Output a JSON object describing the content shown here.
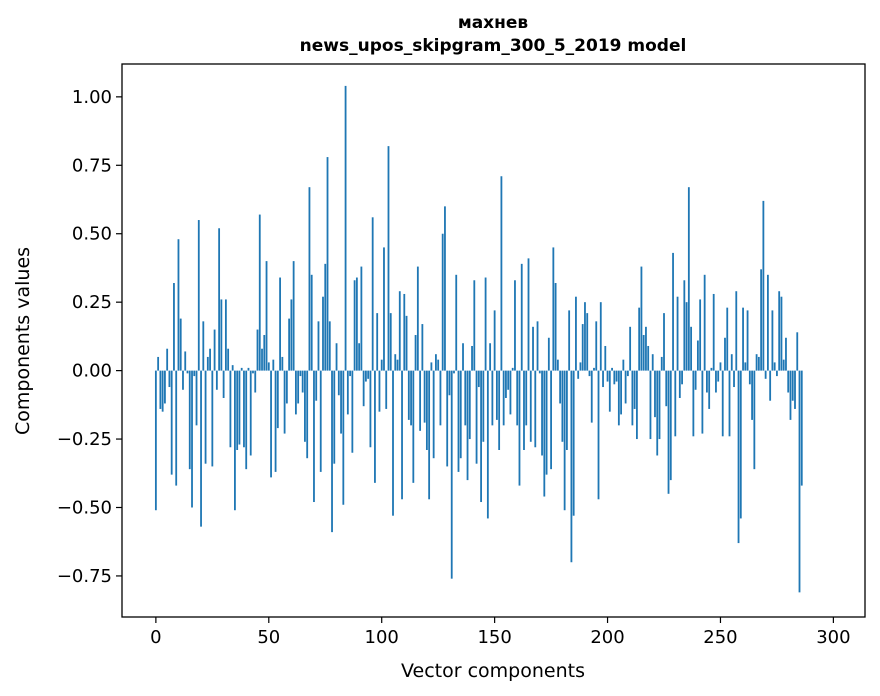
{
  "chart_data": {
    "type": "bar",
    "title": "махнев",
    "subtitle": "news_upos_skipgram_300_5_2019 model",
    "xlabel": "Vector components",
    "ylabel": "Components values",
    "xlim": [
      -15,
      314
    ],
    "ylim": [
      -0.9,
      1.12
    ],
    "xticks": [
      0,
      50,
      100,
      150,
      200,
      250,
      300
    ],
    "yticks": [
      -0.75,
      -0.5,
      -0.25,
      0.0,
      0.25,
      0.5,
      0.75,
      1.0
    ],
    "ytick_labels": [
      "−0.75",
      "−0.50",
      "−0.25",
      "0.00",
      "0.25",
      "0.50",
      "0.75",
      "1.00"
    ],
    "bar_color": "#1f77b4",
    "grid": false,
    "values": [
      -0.51,
      0.05,
      -0.14,
      -0.15,
      -0.12,
      0.08,
      -0.06,
      -0.38,
      0.32,
      -0.42,
      0.48,
      0.19,
      -0.07,
      0.07,
      -0.01,
      -0.36,
      -0.5,
      -0.02,
      -0.2,
      0.55,
      -0.57,
      0.18,
      -0.34,
      0.05,
      0.08,
      -0.35,
      0.15,
      -0.07,
      0.52,
      0.26,
      -0.1,
      0.26,
      0.08,
      -0.28,
      0.02,
      -0.51,
      -0.29,
      -0.27,
      0.01,
      -0.28,
      -0.36,
      0.01,
      -0.31,
      -0.01,
      -0.08,
      0.15,
      0.57,
      0.08,
      0.13,
      0.4,
      0.03,
      -0.39,
      0.04,
      -0.37,
      -0.21,
      0.34,
      0.05,
      -0.23,
      -0.12,
      0.19,
      0.26,
      0.4,
      -0.16,
      -0.12,
      -0.02,
      -0.08,
      -0.26,
      -0.32,
      0.67,
      0.35,
      -0.48,
      -0.11,
      0.18,
      -0.37,
      0.27,
      0.39,
      0.78,
      0.18,
      -0.59,
      -0.34,
      0.1,
      -0.09,
      -0.23,
      -0.49,
      1.04,
      -0.16,
      -0.02,
      -0.3,
      0.33,
      0.34,
      0.1,
      0.38,
      -0.13,
      -0.04,
      -0.03,
      -0.28,
      0.56,
      -0.41,
      0.21,
      -0.15,
      0.04,
      0.45,
      -0.14,
      0.82,
      0.21,
      -0.53,
      0.06,
      0.04,
      0.29,
      -0.47,
      0.28,
      0.2,
      -0.18,
      -0.2,
      -0.41,
      0.13,
      0.38,
      -0.22,
      0.17,
      -0.19,
      -0.29,
      -0.47,
      0.03,
      -0.32,
      0.06,
      0.04,
      -0.2,
      0.5,
      0.6,
      -0.35,
      -0.09,
      -0.76,
      -0.01,
      0.35,
      -0.37,
      -0.32,
      0.1,
      -0.2,
      -0.4,
      -0.25,
      0.09,
      0.33,
      -0.34,
      -0.06,
      -0.48,
      -0.26,
      0.34,
      -0.54,
      0.1,
      -0.2,
      0.22,
      -0.18,
      -0.29,
      0.71,
      -0.2,
      -0.1,
      -0.07,
      -0.16,
      0.01,
      0.33,
      -0.2,
      -0.42,
      0.39,
      -0.29,
      -0.2,
      0.41,
      -0.26,
      0.16,
      -0.28,
      0.18,
      -0.01,
      -0.31,
      -0.46,
      -0.38,
      0.12,
      -0.36,
      0.45,
      0.32,
      0.04,
      -0.12,
      -0.26,
      -0.51,
      -0.29,
      0.22,
      -0.7,
      -0.53,
      0.27,
      -0.03,
      0.03,
      0.17,
      0.25,
      0.21,
      -0.02,
      -0.19,
      0.01,
      0.18,
      -0.47,
      0.25,
      -0.06,
      0.09,
      -0.04,
      -0.15,
      0.01,
      -0.05,
      -0.04,
      -0.2,
      -0.16,
      0.04,
      -0.12,
      -0.02,
      0.16,
      -0.2,
      -0.14,
      -0.25,
      0.23,
      0.38,
      0.13,
      0.16,
      0.09,
      -0.25,
      0.06,
      -0.17,
      -0.31,
      -0.25,
      0.05,
      0.21,
      -0.13,
      -0.45,
      -0.4,
      0.43,
      -0.24,
      0.27,
      -0.1,
      -0.05,
      0.33,
      0.25,
      0.67,
      0.16,
      -0.24,
      -0.07,
      0.11,
      0.26,
      -0.23,
      0.35,
      -0.08,
      -0.14,
      0.01,
      0.28,
      -0.08,
      -0.04,
      0.03,
      -0.24,
      0.12,
      0.23,
      -0.24,
      0.06,
      -0.06,
      0.29,
      -0.63,
      -0.54,
      0.23,
      0.03,
      0.22,
      -0.05,
      -0.18,
      -0.36,
      0.06,
      0.05,
      0.37,
      0.62,
      -0.03,
      0.35,
      -0.11,
      0.22,
      0.03,
      -0.02,
      0.29,
      0.27,
      0.04,
      0.12,
      -0.08,
      -0.18,
      -0.11,
      -0.14,
      0.14,
      -0.81,
      -0.42
    ]
  }
}
